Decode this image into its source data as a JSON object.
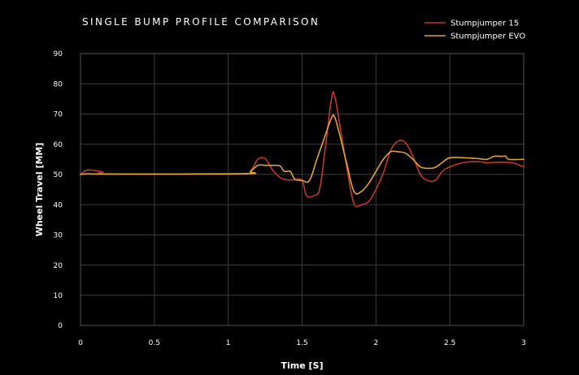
{
  "chart_data": {
    "type": "line",
    "title": "SINGLE BUMP PROFILE COMPARISON",
    "xlabel": "Time [S]",
    "ylabel": "Wheel Travel [MM]",
    "xlim": [
      0,
      3
    ],
    "ylim": [
      0,
      90
    ],
    "x_ticks": [
      "0",
      "0.5",
      "1",
      "1.5",
      "2",
      "2.5",
      "3"
    ],
    "y_ticks": [
      "0",
      "10",
      "20",
      "30",
      "40",
      "50",
      "60",
      "70",
      "80",
      "90"
    ],
    "grid": true,
    "legend_position": "top-right",
    "series": [
      {
        "name": "Stumpjumper 15",
        "color": "#c0392b",
        "x": [
          0,
          0.05,
          0.15,
          0.2,
          1.1,
          1.15,
          1.2,
          1.25,
          1.3,
          1.35,
          1.4,
          1.45,
          1.5,
          1.53,
          1.58,
          1.62,
          1.66,
          1.7,
          1.72,
          1.75,
          1.8,
          1.85,
          1.9,
          1.95,
          2.0,
          2.05,
          2.1,
          2.15,
          2.2,
          2.25,
          2.3,
          2.35,
          2.4,
          2.45,
          2.5,
          2.6,
          2.7,
          2.75,
          2.8,
          2.9,
          2.95,
          3.0
        ],
        "y": [
          50,
          51.5,
          50.8,
          50.2,
          50.3,
          51,
          55,
          55.2,
          51.5,
          49,
          48.2,
          48.2,
          48,
          43,
          43,
          45.5,
          60,
          75.5,
          76,
          68,
          53,
          40.5,
          40,
          41,
          45,
          50.5,
          58,
          61,
          60.5,
          56,
          50,
          48,
          48,
          51,
          52.5,
          54,
          54.2,
          53.8,
          54,
          54,
          53.5,
          52.5
        ]
      },
      {
        "name": "Stumpjumper EVO",
        "color": "#e0a33a",
        "x": [
          0,
          0.05,
          0.2,
          1.1,
          1.15,
          1.2,
          1.25,
          1.3,
          1.35,
          1.38,
          1.42,
          1.45,
          1.5,
          1.55,
          1.6,
          1.65,
          1.7,
          1.72,
          1.75,
          1.8,
          1.85,
          1.9,
          1.95,
          2.0,
          2.05,
          2.1,
          2.15,
          2.2,
          2.25,
          2.3,
          2.35,
          2.4,
          2.45,
          2.5,
          2.6,
          2.7,
          2.75,
          2.8,
          2.85,
          2.88,
          2.9,
          3.0
        ],
        "y": [
          50,
          50.2,
          50.1,
          50.2,
          51,
          53,
          53,
          53,
          52.8,
          51,
          51,
          48.5,
          48,
          48,
          55,
          62,
          68.8,
          69,
          64,
          54,
          44.5,
          44.3,
          47,
          51,
          55,
          57.5,
          57.5,
          57,
          55,
          52.5,
          52,
          52.3,
          54,
          55.5,
          55.5,
          55.2,
          55,
          56,
          56,
          56,
          55,
          55
        ]
      }
    ]
  }
}
